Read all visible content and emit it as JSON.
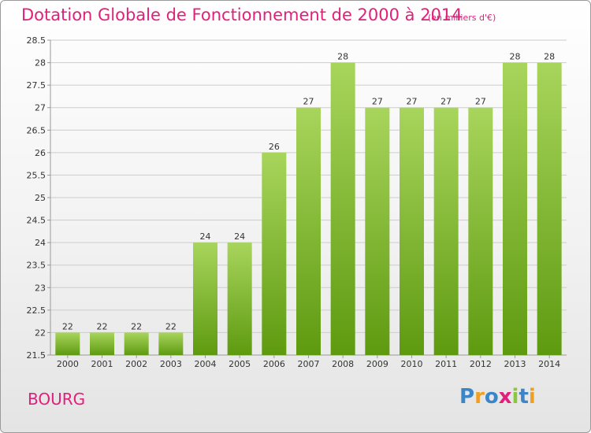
{
  "chart_data": {
    "type": "bar",
    "title": "Dotation Globale de Fonctionnement de 2000 à 2014",
    "subtitle": "(en milliers d'€)",
    "categories": [
      "2000",
      "2001",
      "2002",
      "2003",
      "2004",
      "2005",
      "2006",
      "2007",
      "2008",
      "2009",
      "2010",
      "2011",
      "2012",
      "2013",
      "2014"
    ],
    "values": [
      22,
      22,
      22,
      22,
      24,
      24,
      26,
      27,
      28,
      27,
      27,
      27,
      27,
      28,
      28
    ],
    "ylim": [
      21.5,
      28.5
    ],
    "yticks": [
      "21.5",
      "22",
      "22.5",
      "23",
      "23.5",
      "24",
      "24.5",
      "25",
      "25.5",
      "26",
      "26.5",
      "27",
      "27.5",
      "28",
      "28.5"
    ],
    "grid": true,
    "xlabel": "",
    "ylabel": ""
  },
  "place": "BOURG",
  "brand": {
    "letters": [
      "P",
      "r",
      "o",
      "x",
      "i",
      "t",
      "i"
    ],
    "colors": [
      "#3a86c8",
      "#f0a020",
      "#3a86c8",
      "#e0207a",
      "#8cc63e",
      "#3a86c8",
      "#f0a020"
    ]
  },
  "colors": {
    "accent": "#e0207a",
    "bar_light": "#a8d55c",
    "bar_dark": "#5e9a10"
  }
}
